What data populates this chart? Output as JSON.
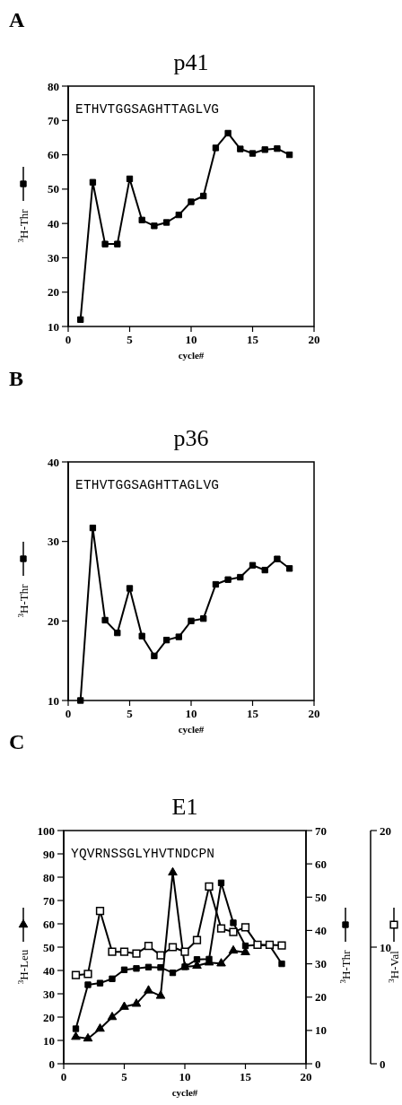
{
  "chart_data": [
    {
      "type": "line",
      "title": "p41",
      "annotations": [
        "A",
        "ETHVTGGSAGHTTAGLVG"
      ],
      "xlabel": "cycle#",
      "ylabel": "$^{3}$H-Thr",
      "marker": "square",
      "xlim": [
        0,
        20
      ],
      "xticks": [
        0,
        5,
        10,
        15,
        20
      ],
      "ylim": [
        10,
        80
      ],
      "yticks": [
        10,
        20,
        30,
        40,
        50,
        60,
        70,
        80
      ],
      "x": [
        1,
        2,
        3,
        4,
        5,
        6,
        7,
        8,
        9,
        10,
        11,
        12,
        13,
        14,
        15,
        16,
        17,
        18
      ],
      "series": [
        {
          "color": "#000000",
          "values": [
            12,
            52,
            34,
            34,
            53,
            41,
            39.3,
            40.3,
            42.5,
            46.3,
            48,
            62,
            66.3,
            61.7,
            60.4,
            61.5,
            61.8,
            60
          ]
        }
      ]
    },
    {
      "type": "line",
      "title": "p36",
      "annotations": [
        "B",
        "ETHVTGGSAGHTTAGLVG"
      ],
      "xlabel": "cycle#",
      "ylabel": "$^{3}$H-Thr",
      "marker": "square",
      "xlim": [
        0,
        20
      ],
      "xticks": [
        0,
        5,
        10,
        15,
        20
      ],
      "ylim": [
        10,
        40
      ],
      "yticks": [
        10,
        20,
        30,
        40
      ],
      "x": [
        1,
        2,
        3,
        4,
        5,
        6,
        7,
        8,
        9,
        10,
        11,
        12,
        13,
        14,
        15,
        16,
        17,
        18
      ],
      "series": [
        {
          "color": "#000000",
          "values": [
            10,
            31.7,
            20.1,
            18.5,
            24.1,
            18.1,
            15.6,
            17.6,
            18,
            20,
            20.3,
            24.6,
            25.2,
            25.5,
            27,
            26.4,
            27.8,
            26.6
          ]
        }
      ]
    },
    {
      "type": "line",
      "title": "E1",
      "annotations": [
        "C",
        "YQVRNSSGLYHVTNDCPN"
      ],
      "xlabel": "cycle#",
      "ylabel": "$^{3}$H-Leu",
      "y2label": "$^{3}$H-Thr",
      "y3label": "$^{3}$H-Val",
      "xlim": [
        0,
        20
      ],
      "xticks": [
        0,
        5,
        10,
        15,
        20
      ],
      "ylim": [
        0,
        100
      ],
      "yticks": [
        0,
        10,
        20,
        30,
        40,
        50,
        60,
        70,
        80,
        90,
        100
      ],
      "y2lim": [
        0,
        70
      ],
      "y2ticks": [
        0,
        10,
        20,
        30,
        40,
        50,
        60,
        70
      ],
      "y3lim": [
        0,
        20
      ],
      "y3ticks": [
        0,
        10,
        20
      ],
      "series": [
        {
          "color": "#000000",
          "axis": "y",
          "marker": "triangle",
          "x": [
            1,
            2,
            3,
            4,
            5,
            6,
            7,
            8,
            9,
            10,
            11,
            12,
            13,
            14,
            15
          ],
          "values": [
            11.5,
            10.8,
            15,
            20,
            24.4,
            25.7,
            31.4,
            29.1,
            82,
            41.5,
            42,
            43.4,
            43,
            48.5,
            47.8
          ]
        },
        {
          "color": "#000000",
          "axis": "y2",
          "marker": "square",
          "x": [
            1,
            2,
            3,
            4,
            5,
            6,
            7,
            8,
            9,
            10,
            11,
            12,
            13,
            14,
            15,
            16,
            17,
            18
          ],
          "values": [
            10.5,
            23.7,
            24.2,
            25.5,
            28.2,
            28.6,
            29,
            28.9,
            27.3,
            29.1,
            31.3,
            31.4,
            54.3,
            42.3,
            35.4,
            35.7,
            35.5,
            30
          ]
        },
        {
          "color": "#000000",
          "axis": "y3",
          "marker": "square",
          "x": [
            1,
            2,
            3,
            4,
            5,
            6,
            7,
            8,
            9,
            10,
            11,
            12,
            13,
            14,
            15,
            16,
            17,
            18
          ],
          "values": [
            7.6,
            7.7,
            13.1,
            9.6,
            9.6,
            9.45,
            10.1,
            9.3,
            10,
            9.6,
            10.6,
            15.2,
            11.6,
            11.3,
            11.7,
            10.2,
            10.2,
            10.15
          ]
        }
      ]
    }
  ]
}
